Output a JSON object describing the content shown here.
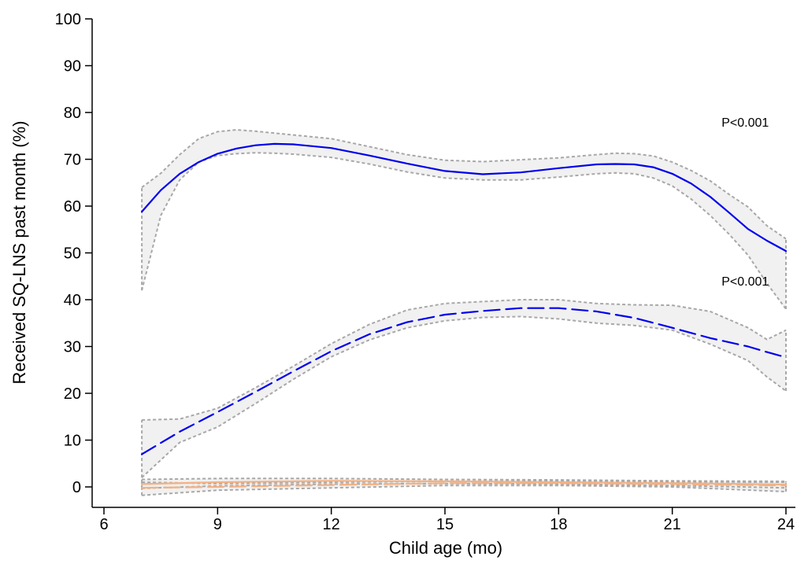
{
  "chart_data": {
    "type": "line",
    "xlabel": "Child age (mo)",
    "ylabel": "Received SQ-LNS past month (%)",
    "xlim": [
      6,
      24
    ],
    "ylim": [
      0,
      100
    ],
    "x_ticks": [
      6,
      9,
      12,
      15,
      18,
      21,
      24
    ],
    "y_ticks": [
      0,
      10,
      20,
      30,
      40,
      50,
      60,
      70,
      80,
      90,
      100
    ],
    "grid": false,
    "legend": "none",
    "annotations": [
      {
        "text": "P<0.001",
        "x": 22.3,
        "y": 77
      },
      {
        "text": "P<0.001",
        "x": 22.3,
        "y": 43
      }
    ],
    "series": [
      {
        "style": "solid",
        "color": "#0000ee",
        "x": [
          7,
          7.5,
          8,
          8.5,
          9,
          9.5,
          10,
          10.5,
          11,
          12,
          13,
          14,
          15,
          16,
          17,
          18,
          19,
          19.5,
          20,
          20.5,
          21,
          21.5,
          22,
          22.5,
          23,
          23.5,
          24
        ],
        "y": [
          58.8,
          63.4,
          66.9,
          69.4,
          71.2,
          72.3,
          73.0,
          73.3,
          73.2,
          72.4,
          70.8,
          69.1,
          67.5,
          66.8,
          67.2,
          68.1,
          68.9,
          69.0,
          68.9,
          68.3,
          66.9,
          64.8,
          62.0,
          58.6,
          55.1,
          52.6,
          50.4
        ],
        "ci_lower": [
          42.0,
          58.0,
          65.6,
          69.4,
          70.8,
          71.2,
          71.4,
          71.3,
          71.1,
          70.4,
          69.0,
          67.3,
          66.0,
          65.6,
          65.6,
          66.2,
          66.9,
          67.1,
          66.9,
          66.0,
          64.3,
          61.5,
          58.0,
          54.0,
          49.5,
          43.5,
          38.0
        ],
        "ci_upper": [
          64.0,
          67.0,
          71.0,
          74.4,
          75.9,
          76.3,
          76.0,
          75.6,
          75.2,
          74.4,
          72.7,
          71.0,
          69.8,
          69.5,
          69.9,
          70.3,
          71.0,
          71.3,
          71.2,
          70.7,
          69.4,
          67.6,
          65.4,
          62.5,
          59.8,
          55.8,
          53.0
        ]
      },
      {
        "style": "dashed",
        "color": "#0000ee",
        "x": [
          7,
          8,
          9,
          10,
          11,
          12,
          13,
          14,
          15,
          16,
          17,
          18,
          19,
          20,
          21,
          22,
          23,
          23.5,
          24
        ],
        "y": [
          7.0,
          11.8,
          16.0,
          20.3,
          24.7,
          29.0,
          32.6,
          35.2,
          36.8,
          37.6,
          38.2,
          38.2,
          37.5,
          36.1,
          34.0,
          31.8,
          30.0,
          28.8,
          27.7
        ],
        "ci_lower": [
          2.0,
          9.5,
          12.8,
          17.8,
          23.0,
          27.8,
          31.4,
          34.0,
          35.5,
          36.2,
          36.4,
          35.9,
          35.0,
          34.5,
          33.5,
          30.5,
          27.0,
          23.5,
          20.5
        ],
        "ci_upper": [
          14.3,
          14.5,
          16.8,
          21.2,
          25.8,
          30.6,
          34.7,
          37.8,
          39.2,
          39.6,
          40.0,
          40.0,
          39.2,
          38.9,
          38.8,
          37.5,
          34.0,
          31.5,
          33.5
        ]
      },
      {
        "style": "solid",
        "color": "#f4b183",
        "x": [
          7,
          9,
          12,
          15,
          18,
          21,
          24
        ],
        "y": [
          0.6,
          1.0,
          1.3,
          1.2,
          1.0,
          0.8,
          0.5
        ],
        "ci_lower": [
          -0.3,
          0.2,
          0.6,
          0.7,
          0.6,
          0.3,
          -0.2
        ],
        "ci_upper": [
          1.6,
          1.8,
          1.8,
          1.6,
          1.5,
          1.3,
          1.2
        ]
      },
      {
        "style": "dashed",
        "color": "#f4b183",
        "x": [
          7,
          9,
          12,
          15,
          18,
          21,
          24
        ],
        "y": [
          -0.2,
          0.0,
          0.4,
          0.8,
          0.8,
          0.6,
          0.3
        ],
        "ci_lower": [
          -1.8,
          -0.7,
          -0.2,
          0.3,
          0.3,
          0.0,
          -1.0
        ],
        "ci_upper": [
          1.0,
          0.7,
          1.0,
          1.2,
          1.2,
          1.1,
          1.0
        ]
      }
    ]
  }
}
